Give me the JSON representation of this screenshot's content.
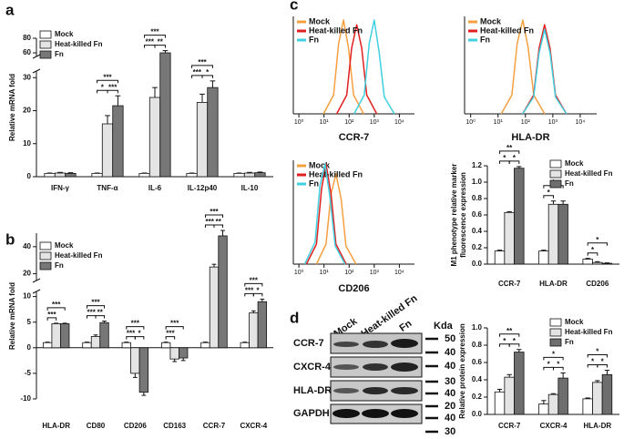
{
  "panel_labels": [
    "a",
    "b",
    "c",
    "d"
  ],
  "chart_data": [
    {
      "type": "bar",
      "ylabel": "Relative mRNA fold",
      "categories": [
        "IFN-γ",
        "TNF-α",
        "IL-6",
        "IL-12p40",
        "IL-10"
      ],
      "series": [
        {
          "name": "Mock",
          "color": "#ffffff",
          "values": [
            1,
            1,
            1,
            1,
            1
          ],
          "errors": [
            0.1,
            0.1,
            0.1,
            0.1,
            0.1
          ]
        },
        {
          "name": "Heat-killed Fn",
          "color": "#e4e4e4",
          "values": [
            1.1,
            16,
            24,
            22.5,
            1.1
          ],
          "errors": [
            0.2,
            2.5,
            3,
            2.5,
            0.2
          ]
        },
        {
          "name": "Fn",
          "color": "#777777",
          "values": [
            1,
            21.5,
            60,
            27,
            1.2
          ],
          "errors": [
            0.2,
            3,
            3,
            2,
            0.2
          ]
        }
      ],
      "ylim": [
        0,
        80
      ],
      "axis_break": [
        32,
        55
      ],
      "yticks": [
        0,
        10,
        20,
        30,
        60,
        80
      ],
      "legend": "upper left",
      "comparisons": [
        {
          "category": 1,
          "groups": [
            0,
            1
          ],
          "label": "*"
        },
        {
          "category": 1,
          "groups": [
            1,
            2
          ],
          "label": "***"
        },
        {
          "category": 1,
          "groups": [
            0,
            2
          ],
          "label": "***"
        },
        {
          "category": 2,
          "groups": [
            0,
            1
          ],
          "label": "***"
        },
        {
          "category": 2,
          "groups": [
            1,
            2
          ],
          "label": "**"
        },
        {
          "category": 2,
          "groups": [
            0,
            2
          ],
          "label": "***"
        },
        {
          "category": 3,
          "groups": [
            0,
            1
          ],
          "label": "***"
        },
        {
          "category": 3,
          "groups": [
            1,
            2
          ],
          "label": "*"
        },
        {
          "category": 3,
          "groups": [
            0,
            2
          ],
          "label": "***"
        }
      ]
    },
    {
      "type": "bar",
      "ylabel": "Relative mRNA fold",
      "categories": [
        "HLA-DR",
        "CD80",
        "CD206",
        "CD163",
        "CCR-7",
        "CXCR-4"
      ],
      "series": [
        {
          "name": "Mock",
          "color": "#ffffff",
          "values": [
            1,
            1,
            1,
            1,
            1,
            1
          ],
          "errors": [
            0.1,
            0.1,
            0.1,
            0.1,
            0.1,
            0.1
          ]
        },
        {
          "name": "Heat-killed Fn",
          "color": "#e4e4e4",
          "values": [
            4.7,
            2.2,
            -5,
            -2.2,
            25,
            6.8
          ],
          "errors": [
            0.1,
            0.3,
            0.8,
            0.5,
            2,
            0.4
          ]
        },
        {
          "name": "Fn",
          "color": "#777777",
          "values": [
            4.7,
            4.9,
            -8.7,
            -2,
            48,
            9
          ],
          "errors": [
            0.1,
            0.3,
            0.6,
            0.5,
            4,
            0.5
          ]
        }
      ],
      "ylim": [
        -10,
        50
      ],
      "axis_break": [
        11,
        15
      ],
      "yticks": [
        -10,
        -5,
        0,
        5,
        10,
        20,
        40
      ],
      "legend": "upper left",
      "comparisons": [
        {
          "category": 0,
          "groups": [
            0,
            1
          ],
          "label": "***"
        },
        {
          "category": 0,
          "groups": [
            0,
            2
          ],
          "label": "***"
        },
        {
          "category": 1,
          "groups": [
            0,
            1
          ],
          "label": "***"
        },
        {
          "category": 1,
          "groups": [
            1,
            2
          ],
          "label": "**"
        },
        {
          "category": 1,
          "groups": [
            0,
            2
          ],
          "label": "***"
        },
        {
          "category": 2,
          "groups": [
            0,
            1
          ],
          "label": "***"
        },
        {
          "category": 2,
          "groups": [
            1,
            2
          ],
          "label": "*"
        },
        {
          "category": 2,
          "groups": [
            0,
            2
          ],
          "label": "***"
        },
        {
          "category": 3,
          "groups": [
            0,
            1
          ],
          "label": "***"
        },
        {
          "category": 3,
          "groups": [
            0,
            2
          ],
          "label": "***"
        },
        {
          "category": 4,
          "groups": [
            0,
            1
          ],
          "label": "***"
        },
        {
          "category": 4,
          "groups": [
            1,
            2
          ],
          "label": "**"
        },
        {
          "category": 4,
          "groups": [
            0,
            2
          ],
          "label": "***"
        },
        {
          "category": 5,
          "groups": [
            0,
            1
          ],
          "label": "***"
        },
        {
          "category": 5,
          "groups": [
            1,
            2
          ],
          "label": "*"
        },
        {
          "category": 5,
          "groups": [
            0,
            2
          ],
          "label": "***"
        }
      ]
    },
    {
      "type": "line",
      "xscale": "log",
      "xlabel": "CCR-7",
      "xlim": [
        0.6,
        40000
      ],
      "ylim": [
        0,
        100
      ],
      "xticks": [
        {
          "value": 1,
          "label": "10⁰"
        },
        {
          "value": 10,
          "label": "10¹"
        },
        {
          "value": 100,
          "label": "10²"
        },
        {
          "value": 1000,
          "label": "10³"
        },
        {
          "value": 10000,
          "label": "10⁴"
        }
      ],
      "legend": "upper left",
      "series": [
        {
          "name": "Mock",
          "color": "#f5a040",
          "x": [
            9.5,
            24,
            38,
            60,
            95,
            151,
            379
          ],
          "values": [
            0,
            20,
            75,
            100,
            70,
            20,
            0
          ]
        },
        {
          "name": "Heat-killed Fn",
          "color": "#e02020",
          "x": [
            32,
            80,
            126,
            200,
            317,
            502,
            1262
          ],
          "values": [
            0,
            20,
            70,
            95,
            70,
            20,
            0
          ]
        },
        {
          "name": "Fn",
          "color": "#40d0e0",
          "x": [
            158,
            398,
            631,
            1000,
            1585,
            2512,
            6310
          ],
          "values": [
            0,
            20,
            75,
            100,
            65,
            18,
            0
          ]
        }
      ]
    },
    {
      "type": "line",
      "xscale": "log",
      "xlabel": "HLA-DR",
      "xlim": [
        0.6,
        40000
      ],
      "ylim": [
        0,
        100
      ],
      "xticks": [
        {
          "value": 1,
          "label": "10⁰"
        },
        {
          "value": 10,
          "label": "10¹"
        },
        {
          "value": 100,
          "label": "10²"
        },
        {
          "value": 1000,
          "label": "10³"
        },
        {
          "value": 10000,
          "label": "10⁴"
        }
      ],
      "legend": "upper left",
      "series": [
        {
          "name": "Mock",
          "color": "#f5a040",
          "x": [
            13,
            32,
            50,
            80,
            127,
            201,
            505
          ],
          "values": [
            0,
            20,
            75,
            100,
            70,
            20,
            0
          ]
        },
        {
          "name": "Heat-killed Fn",
          "color": "#e02020",
          "x": [
            79,
            199,
            315,
            500,
            792,
            1256,
            3155
          ],
          "values": [
            0,
            20,
            70,
            95,
            70,
            20,
            0
          ]
        },
        {
          "name": "Fn",
          "color": "#40d0e0",
          "x": [
            79,
            199,
            315,
            500,
            792,
            1256,
            3155
          ],
          "values": [
            0,
            18,
            65,
            90,
            65,
            18,
            0
          ]
        }
      ]
    },
    {
      "type": "line",
      "xscale": "log",
      "xlabel": "CD206",
      "xlim": [
        0.6,
        40000
      ],
      "ylim": [
        0,
        100
      ],
      "xticks": [
        {
          "value": 1,
          "label": "10⁰"
        },
        {
          "value": 10,
          "label": "10¹"
        },
        {
          "value": 100,
          "label": "10²"
        },
        {
          "value": 1000,
          "label": "10³"
        },
        {
          "value": 10000,
          "label": "10⁴"
        }
      ],
      "legend": "upper left",
      "series": [
        {
          "name": "Mock",
          "color": "#f5a040",
          "x": [
            5,
            12,
            19,
            30,
            48,
            75,
            189
          ],
          "values": [
            0,
            20,
            70,
            90,
            65,
            18,
            0
          ]
        },
        {
          "name": "Heat-killed Fn",
          "color": "#e02020",
          "x": [
            2,
            5,
            8,
            12,
            19,
            30,
            76
          ],
          "values": [
            0,
            20,
            75,
            100,
            70,
            20,
            0
          ]
        },
        {
          "name": "Fn",
          "color": "#40d0e0",
          "x": [
            1.7,
            4.4,
            6.9,
            11,
            17,
            28,
            69
          ],
          "values": [
            0,
            22,
            78,
            100,
            68,
            18,
            0
          ]
        }
      ]
    },
    {
      "type": "bar",
      "ylabel": [
        "M1 phenotype relative marker",
        "fluorescence expression"
      ],
      "categories": [
        "CCR-7",
        "HLA-DR",
        "CD206"
      ],
      "series": [
        {
          "name": "Mock",
          "color": "#ffffff",
          "values": [
            0.16,
            0.16,
            0.06
          ],
          "errors": [
            0.01,
            0.01,
            0.01
          ]
        },
        {
          "name": "Heat-killed Fn",
          "color": "#e4e4e4",
          "values": [
            0.63,
            0.73,
            0.02
          ],
          "errors": [
            0.01,
            0.04,
            0.01
          ]
        },
        {
          "name": "Fn",
          "color": "#6e6e6e",
          "values": [
            1.17,
            0.73,
            0.01
          ],
          "errors": [
            0.02,
            0.04,
            0.005
          ]
        }
      ],
      "ylim": [
        0,
        1.2
      ],
      "yticks": [
        {
          "value": 0,
          "label": "0.0"
        },
        0.2,
        0.4,
        0.6,
        0.8,
        {
          "value": 1,
          "label": "1.0"
        },
        1.2
      ],
      "legend": "upper right",
      "comparisons": [
        {
          "category": 0,
          "groups": [
            0,
            1
          ],
          "label": "*"
        },
        {
          "category": 0,
          "groups": [
            1,
            2
          ],
          "label": "*"
        },
        {
          "category": 0,
          "groups": [
            0,
            2
          ],
          "label": "**"
        },
        {
          "category": 1,
          "groups": [
            0,
            1
          ],
          "label": "*"
        },
        {
          "category": 1,
          "groups": [
            0,
            2
          ],
          "label": "*"
        },
        {
          "category": 2,
          "groups": [
            0,
            1
          ],
          "label": "*"
        },
        {
          "category": 2,
          "groups": [
            0,
            2
          ],
          "label": "*"
        }
      ]
    },
    {
      "type": "bar",
      "ylabel": "Relative protein expression",
      "categories": [
        "CCR-7",
        "CXCR-4",
        "HLA-DR"
      ],
      "series": [
        {
          "name": "Mock",
          "color": "#ffffff",
          "values": [
            0.26,
            0.12,
            0.18
          ],
          "errors": [
            0.03,
            0.04,
            0.01
          ]
        },
        {
          "name": "Heat-killed Fn",
          "color": "#e4e4e4",
          "values": [
            0.43,
            0.23,
            0.37
          ],
          "errors": [
            0.03,
            0.01,
            0.02
          ]
        },
        {
          "name": "Fn",
          "color": "#6e6e6e",
          "values": [
            0.72,
            0.42,
            0.46
          ],
          "errors": [
            0.03,
            0.06,
            0.05
          ]
        }
      ],
      "ylim": [
        0,
        1
      ],
      "yticks": [
        {
          "value": 0,
          "label": "0.0"
        },
        0.2,
        0.4,
        0.6,
        0.8,
        {
          "value": 1,
          "label": "1.0"
        }
      ],
      "legend": "upper right",
      "comparisons": [
        {
          "category": 0,
          "groups": [
            0,
            1
          ],
          "label": "*"
        },
        {
          "category": 0,
          "groups": [
            1,
            2
          ],
          "label": "*"
        },
        {
          "category": 0,
          "groups": [
            0,
            2
          ],
          "label": "**"
        },
        {
          "category": 1,
          "groups": [
            0,
            1
          ],
          "label": "*"
        },
        {
          "category": 1,
          "groups": [
            1,
            2
          ],
          "label": "*"
        },
        {
          "category": 1,
          "groups": [
            0,
            2
          ],
          "label": "*"
        },
        {
          "category": 2,
          "groups": [
            0,
            1
          ],
          "label": "*"
        },
        {
          "category": 2,
          "groups": [
            1,
            2
          ],
          "label": "*"
        },
        {
          "category": 2,
          "groups": [
            0,
            2
          ],
          "label": "*"
        }
      ]
    }
  ],
  "blot": {
    "columns": [
      "Mock",
      "Heat-killed Fn",
      "Fn"
    ],
    "rows": [
      "CCR-7",
      "CXCR-4",
      "HLA-DR",
      "GAPDH"
    ],
    "unit": "Kda",
    "markers": [
      50,
      40,
      40,
      30,
      40,
      20,
      40,
      30
    ]
  }
}
